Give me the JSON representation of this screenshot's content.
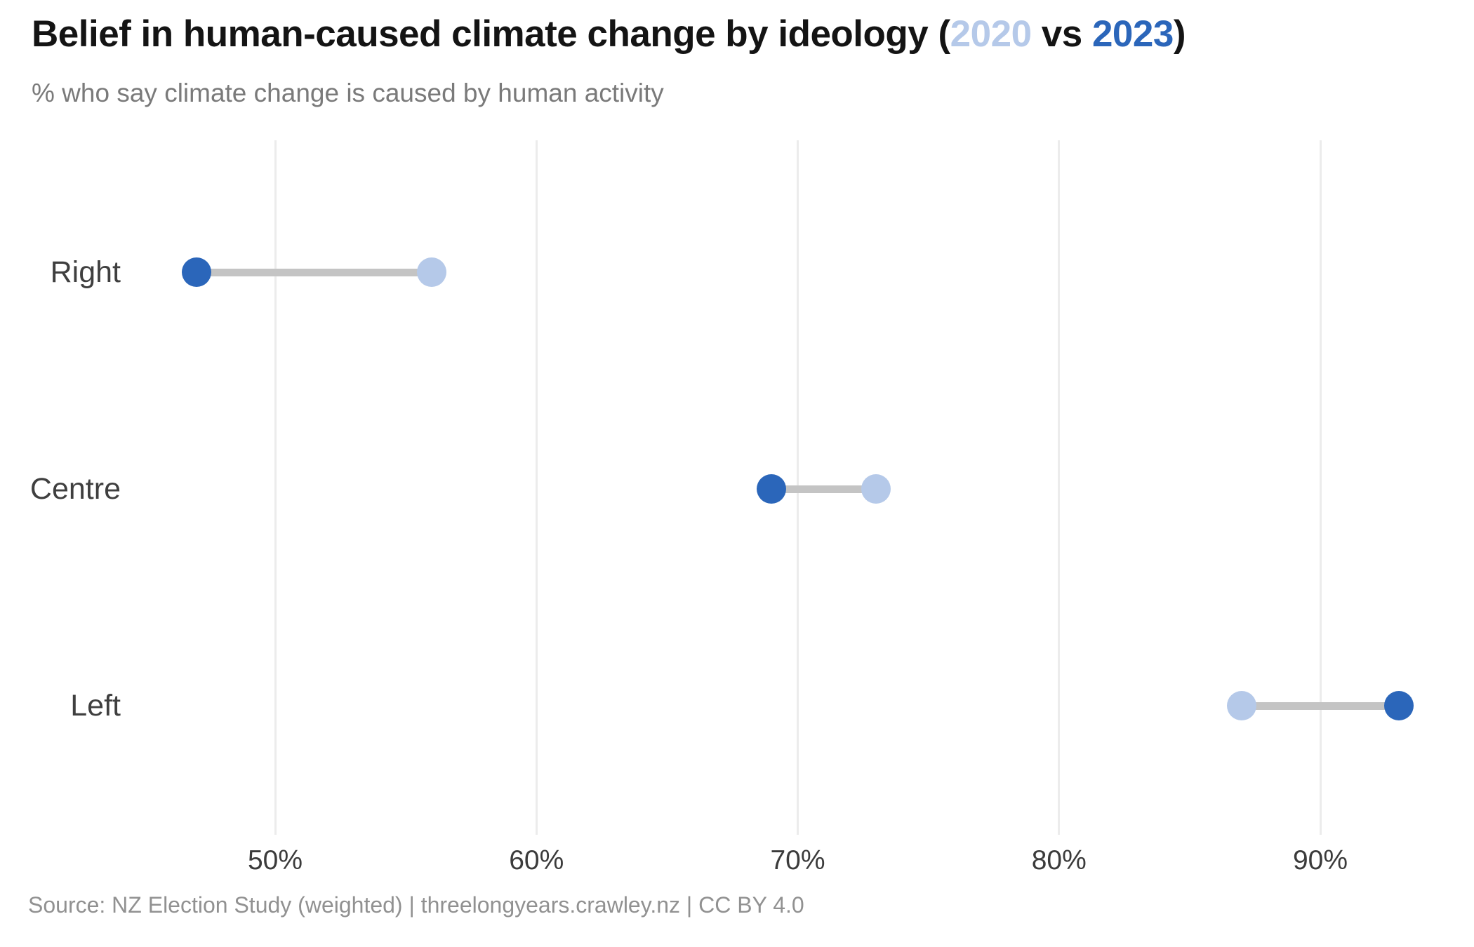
{
  "title": {
    "main": "Belief in human-caused climate change by ideology (",
    "year_2020": "2020",
    "vs": " vs ",
    "year_2023": "2023",
    "close": ")"
  },
  "subtitle": "% who say climate change is caused by human activity",
  "source": "Source: NZ Election Study (weighted) | threelongyears.crawley.nz | CC BY 4.0",
  "colors": {
    "year_2020": "#b5c9e9",
    "year_2023": "#2b66ba",
    "connector": "#c4c4c4",
    "gridline": "#ececec",
    "title_text": "#141414",
    "subtitle_text": "#7a7a7a",
    "category_label": "#3f3f3f",
    "tick_label": "#3b3b3b",
    "source_text": "#919191"
  },
  "chart_data": {
    "type": "dumbbell",
    "title": "Belief in human-caused climate change by ideology (2020 vs 2023)",
    "subtitle": "% who say climate change is caused by human activity",
    "categories": [
      "Right",
      "Centre",
      "Left"
    ],
    "series": [
      {
        "name": "2020",
        "color": "#b5c9e9",
        "values": [
          56,
          73,
          87
        ]
      },
      {
        "name": "2023",
        "color": "#2b66ba",
        "values": [
          47,
          69,
          93
        ]
      }
    ],
    "x_ticks": [
      50,
      60,
      70,
      80,
      90
    ],
    "x_tick_labels": [
      "50%",
      "60%",
      "70%",
      "80%",
      "90%"
    ],
    "xlim": [
      44,
      96
    ],
    "xlabel": "",
    "ylabel": "",
    "grid": "vertical-only",
    "legend": "encoded-in-title-colors",
    "orientation": "horizontal-rows"
  }
}
